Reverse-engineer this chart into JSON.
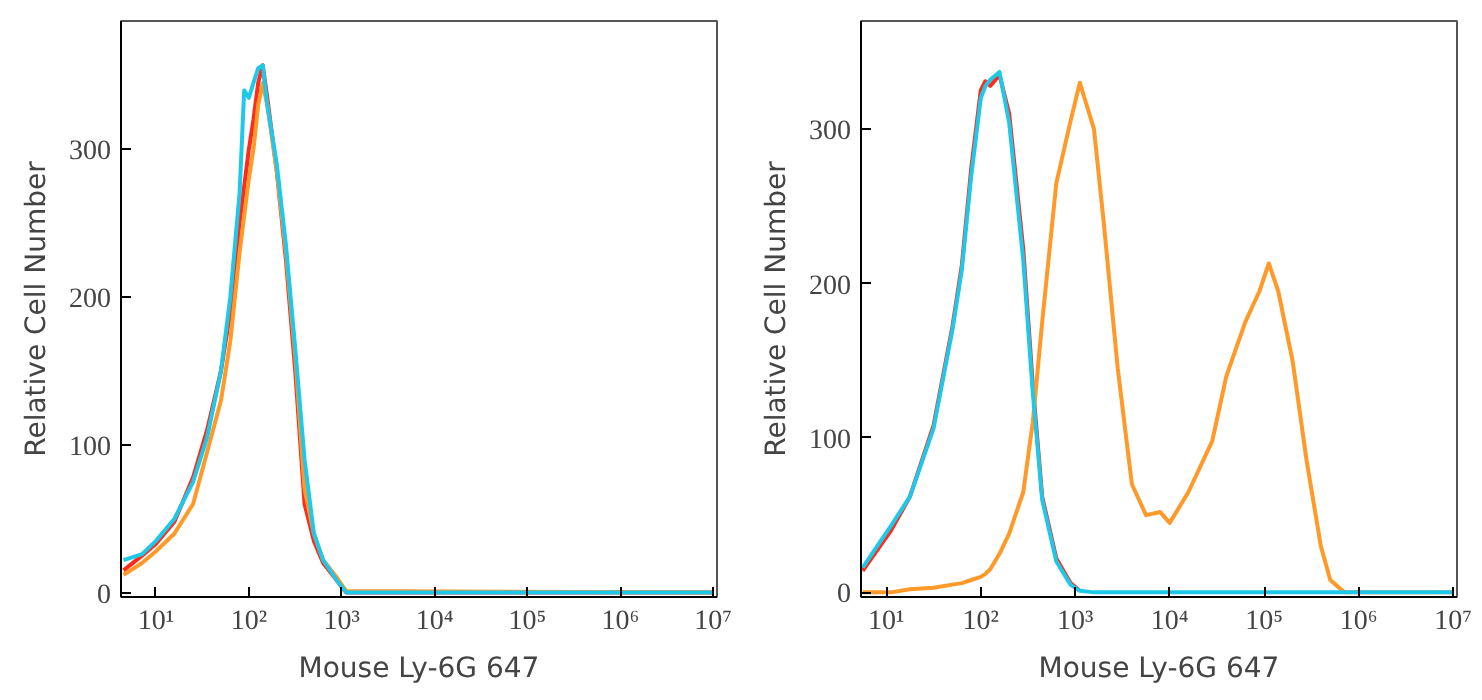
{
  "chart_data": [
    {
      "type": "line",
      "xlabel": "Mouse Ly-6G 647",
      "ylabel": "Relative Cell Number",
      "log": "x",
      "grid": false,
      "line_style": "solid",
      "xlim": [
        4.2,
        11000000
      ],
      "ylim": [
        -3,
        387
      ],
      "xticks": [
        {
          "value": 10,
          "label": "10¹"
        },
        {
          "value": 100,
          "label": "10²"
        },
        {
          "value": 1000,
          "label": "10³"
        },
        {
          "value": 10000,
          "label": "10⁴"
        },
        {
          "value": 100000,
          "label": "10⁵"
        },
        {
          "value": 1000000,
          "label": "10⁶"
        },
        {
          "value": 10000000,
          "label": "10⁷"
        }
      ],
      "yticks": [
        0,
        100,
        200,
        300
      ],
      "x": [
        4.47,
        7.08,
        10,
        15.8,
        25.1,
        35.5,
        50.1,
        63.1,
        79.4,
        89.1,
        100,
        112,
        126,
        141,
        158,
        200,
        251,
        316,
        398,
        501,
        631,
        891,
        1120,
        10000000
      ],
      "series": [
        {
          "color": "#ff2a1a",
          "values": [
            15,
            25,
            33,
            48,
            78,
            110,
            150,
            190,
            250,
            275,
            300,
            320,
            345,
            357,
            335,
            285,
            225,
            150,
            60,
            35,
            20,
            8,
            0,
            0
          ]
        },
        {
          "color": "#ff9a2a",
          "values": [
            12,
            20,
            28,
            40,
            60,
            95,
            130,
            170,
            230,
            255,
            280,
            300,
            330,
            345,
            330,
            285,
            230,
            160,
            70,
            40,
            22,
            10,
            1,
            0
          ]
        },
        {
          "color": "#1ec8e8",
          "values": [
            22,
            26,
            35,
            50,
            75,
            105,
            150,
            200,
            270,
            340,
            335,
            345,
            355,
            357,
            330,
            290,
            235,
            165,
            90,
            40,
            22,
            8,
            0,
            0
          ]
        }
      ]
    },
    {
      "type": "line",
      "xlabel": "Mouse Ly-6G 647",
      "ylabel": "Relative Cell Number",
      "log": "x",
      "grid": false,
      "line_style": "solid",
      "xlim": [
        5.4,
        11000000
      ],
      "ylim": [
        -3,
        370
      ],
      "xticks": [
        {
          "value": 10,
          "label": "10¹"
        },
        {
          "value": 100,
          "label": "10²"
        },
        {
          "value": 1000,
          "label": "10³"
        },
        {
          "value": 10000,
          "label": "10⁴"
        },
        {
          "value": 100000,
          "label": "10⁵"
        },
        {
          "value": 1000000,
          "label": "10⁶"
        },
        {
          "value": 10000000,
          "label": "10⁷"
        }
      ],
      "yticks": [
        0,
        100,
        200,
        300
      ],
      "x": [
        5.62,
        11.2,
        17.8,
        31.6,
        50.1,
        63.1,
        79.4,
        100,
        112,
        126,
        158,
        200,
        282,
        355,
        447,
        631,
        891,
        1120,
        1580,
        2000,
        2820,
        3980,
        5620,
        7940,
        10000,
        15800,
        28200,
        39800,
        63100,
        89100,
        112000,
        141000,
        200000,
        282000,
        398000,
        501000,
        708000,
        10000000
      ],
      "series": [
        {
          "color": "#ff2a1a",
          "values": [
            14,
            40,
            62,
            108,
            172,
            212,
            275,
            325,
            331,
            328,
            335,
            310,
            222,
            135,
            62,
            22,
            6,
            1,
            null,
            null,
            null,
            null,
            null,
            null,
            null,
            null,
            null,
            null,
            null,
            null,
            null,
            null,
            null,
            null,
            null,
            null,
            null,
            null
          ]
        },
        {
          "color": "#ff9a2a",
          "values": [
            0,
            0,
            2,
            3,
            5,
            6,
            8,
            10,
            12,
            15,
            25,
            38,
            65,
            110,
            175,
            265,
            305,
            330,
            300,
            240,
            145,
            70,
            50,
            52,
            45,
            65,
            98,
            140,
            175,
            195,
            213,
            195,
            150,
            85,
            30,
            8,
            0,
            0
          ]
        },
        {
          "color": "#1ec8e8",
          "values": [
            16,
            43,
            62,
            106,
            170,
            209,
            270,
            320,
            328,
            332,
            337,
            304,
            215,
            130,
            60,
            20,
            5,
            1,
            0,
            0,
            0,
            0,
            0,
            0,
            0,
            0,
            0,
            0,
            0,
            0,
            0,
            0,
            0,
            0,
            0,
            0,
            0,
            0
          ]
        }
      ]
    }
  ]
}
